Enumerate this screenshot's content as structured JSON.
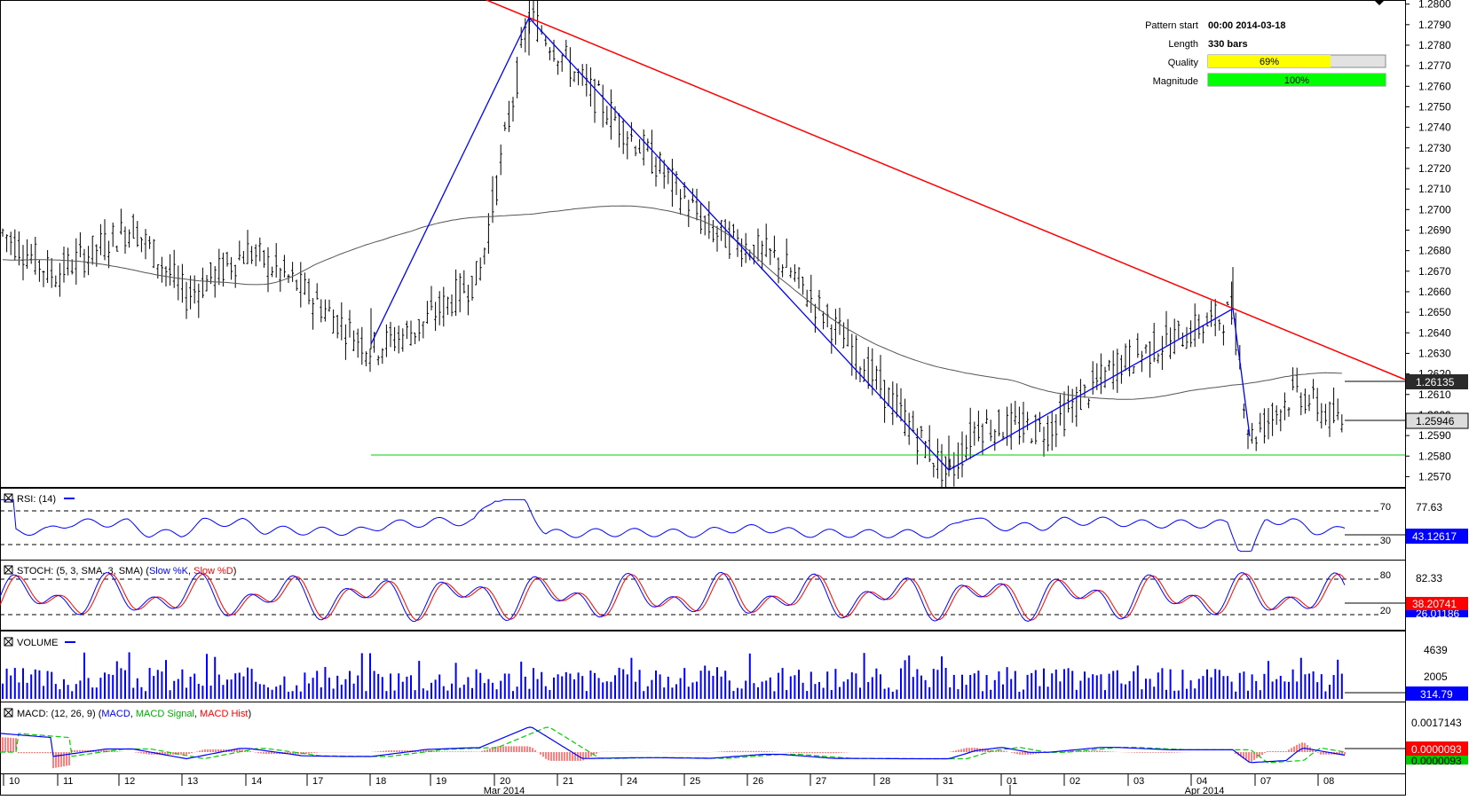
{
  "info_box": {
    "pattern_start_label": "Pattern start",
    "pattern_start_value": "00:00 2014-03-18",
    "length_label": "Length",
    "length_value": "330 bars",
    "quality_label": "Quality",
    "quality_value": "69%",
    "quality_pct": 69,
    "magnitude_label": "Magnitude",
    "magnitude_value": "100%",
    "magnitude_pct": 100
  },
  "colors": {
    "candles": "#000000",
    "moving_average": "#555555",
    "resistance_line": "#ff0000",
    "support_line": "#00cc00",
    "pattern_zigzag": "#0000ff",
    "rsi_line": "#0000ff",
    "stoch_k": "#0000ff",
    "stoch_d": "#ff0000",
    "volume": "#0000ff",
    "macd": "#0000ff",
    "macd_signal": "#00cc00",
    "macd_hist": "#ff0000",
    "quality_bar": "#ffff00",
    "magnitude_bar": "#00ff00"
  },
  "chart_data": [
    {
      "type": "candlestick",
      "panel": "price",
      "ylim": [
        1.2565,
        1.2802
      ],
      "y_ticks": [
        "1.2800",
        "1.2790",
        "1.2780",
        "1.2770",
        "1.2760",
        "1.2750",
        "1.2740",
        "1.2730",
        "1.2720",
        "1.2710",
        "1.2700",
        "1.2690",
        "1.2680",
        "1.2670",
        "1.2660",
        "1.2650",
        "1.2640",
        "1.2630",
        "1.2620",
        "1.2610",
        "1.2600",
        "1.2590",
        "1.2580",
        "1.2570"
      ],
      "price_labels": {
        "ma_value": "1.26135",
        "last_price": "1.25946"
      },
      "pattern_zigzag": [
        [
          1.2632,
          1.2795,
          1.257,
          1.2652,
          1.2588
        ]
      ],
      "resistance_line": "descending",
      "support_level": 1.2577
    },
    {
      "type": "line",
      "panel": "rsi",
      "title": "RSI: (14)",
      "levels": [
        "70",
        "30"
      ],
      "axis_value": "77.63",
      "last_value": "43.12617"
    },
    {
      "type": "line",
      "panel": "stoch",
      "title_prefix": "STOCH: (5, 3, SMA, 3, SMA)",
      "series_k": "Slow %K",
      "series_d": "Slow %D",
      "levels": [
        "80",
        "20"
      ],
      "axis_value": "82.33",
      "last_value": "38.20741",
      "last_value_k_partial": "26.01186"
    },
    {
      "type": "bar",
      "panel": "volume",
      "title": "VOLUME",
      "y_ticks": [
        "4639",
        "2005"
      ],
      "last_value": "314.79"
    },
    {
      "type": "line",
      "panel": "macd",
      "title_prefix": "MACD: (12, 26, 9)",
      "series_macd": "MACD",
      "series_signal": "MACD Signal",
      "series_hist": "MACD Hist",
      "axis_value": "0.0017143",
      "last_value": "0.0000093",
      "last_value_partial": "0.0000093"
    }
  ],
  "x_axis": {
    "day_labels": [
      "10",
      "11",
      "12",
      "13",
      "14",
      "17",
      "18",
      "19",
      "20",
      "21",
      "24",
      "25",
      "26",
      "27",
      "28",
      "31",
      "01",
      "02",
      "03",
      "04",
      "07",
      "08"
    ],
    "month_labels": [
      "Mar 2014",
      "Apr 2014"
    ]
  }
}
